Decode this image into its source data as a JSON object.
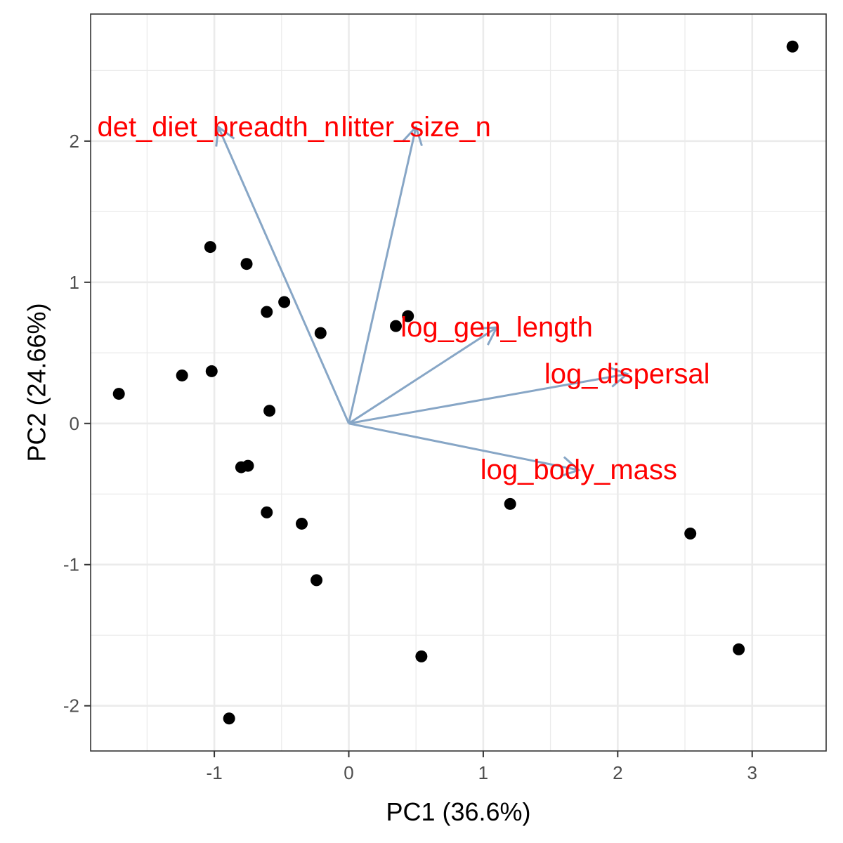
{
  "chart_data": {
    "type": "scatter",
    "subtype": "pca-biplot",
    "xlabel": "PC1 (36.6%)",
    "ylabel": "PC2 (24.66%)",
    "xlim": [
      -1.92,
      3.55
    ],
    "ylim": [
      -2.32,
      2.9
    ],
    "x_ticks": [
      -1,
      0,
      1,
      2,
      3
    ],
    "x_tick_labels": [
      "-1",
      "0",
      "1",
      "2",
      "3"
    ],
    "y_ticks": [
      -2,
      -1,
      0,
      1,
      2
    ],
    "y_tick_labels": [
      "-2",
      "-1",
      "0",
      "1",
      "2"
    ],
    "x_minor_ticks": [
      -1.5,
      -0.5,
      0.5,
      1.5,
      2.5
    ],
    "y_minor_ticks": [
      -1.5,
      -0.5,
      0.5,
      1.5,
      2.5
    ],
    "grid": true,
    "theme": "bw",
    "colors": {
      "points": "#000000",
      "arrows": "#87a6c6",
      "arrow_labels": "#ff0000",
      "grid": "#ebebeb",
      "panel_border": "#333333"
    },
    "points": [
      {
        "x": 3.3,
        "y": 2.67
      },
      {
        "x": -1.03,
        "y": 1.25
      },
      {
        "x": -0.76,
        "y": 1.13
      },
      {
        "x": -0.61,
        "y": 0.79
      },
      {
        "x": -0.48,
        "y": 0.86
      },
      {
        "x": 0.44,
        "y": 0.76
      },
      {
        "x": 0.35,
        "y": 0.69
      },
      {
        "x": -0.21,
        "y": 0.64
      },
      {
        "x": -1.71,
        "y": 0.21
      },
      {
        "x": -1.24,
        "y": 0.34
      },
      {
        "x": -1.02,
        "y": 0.37
      },
      {
        "x": -0.59,
        "y": 0.09
      },
      {
        "x": -0.8,
        "y": -0.31
      },
      {
        "x": -0.75,
        "y": -0.3
      },
      {
        "x": -0.61,
        "y": -0.63
      },
      {
        "x": -0.35,
        "y": -0.71
      },
      {
        "x": -0.24,
        "y": -1.11
      },
      {
        "x": 1.2,
        "y": -0.57
      },
      {
        "x": 2.54,
        "y": -0.78
      },
      {
        "x": 2.9,
        "y": -1.6
      },
      {
        "x": 0.54,
        "y": -1.65
      },
      {
        "x": -0.89,
        "y": -2.09
      }
    ],
    "loadings": [
      {
        "name": "det_diet_breadth_n",
        "x": -0.97,
        "y": 2.1,
        "label_x": -0.97,
        "label_y": 2.1
      },
      {
        "name": "litter_size_n",
        "x": 0.5,
        "y": 2.1,
        "label_x": 0.5,
        "label_y": 2.1
      },
      {
        "name": "log_gen_length",
        "x": 1.1,
        "y": 0.68,
        "label_x": 1.1,
        "label_y": 0.68
      },
      {
        "name": "log_dispersal",
        "x": 2.07,
        "y": 0.35,
        "label_x": 2.07,
        "label_y": 0.35
      },
      {
        "name": "log_body_mass",
        "x": 1.71,
        "y": -0.33,
        "label_x": 1.71,
        "label_y": -0.33
      }
    ]
  }
}
